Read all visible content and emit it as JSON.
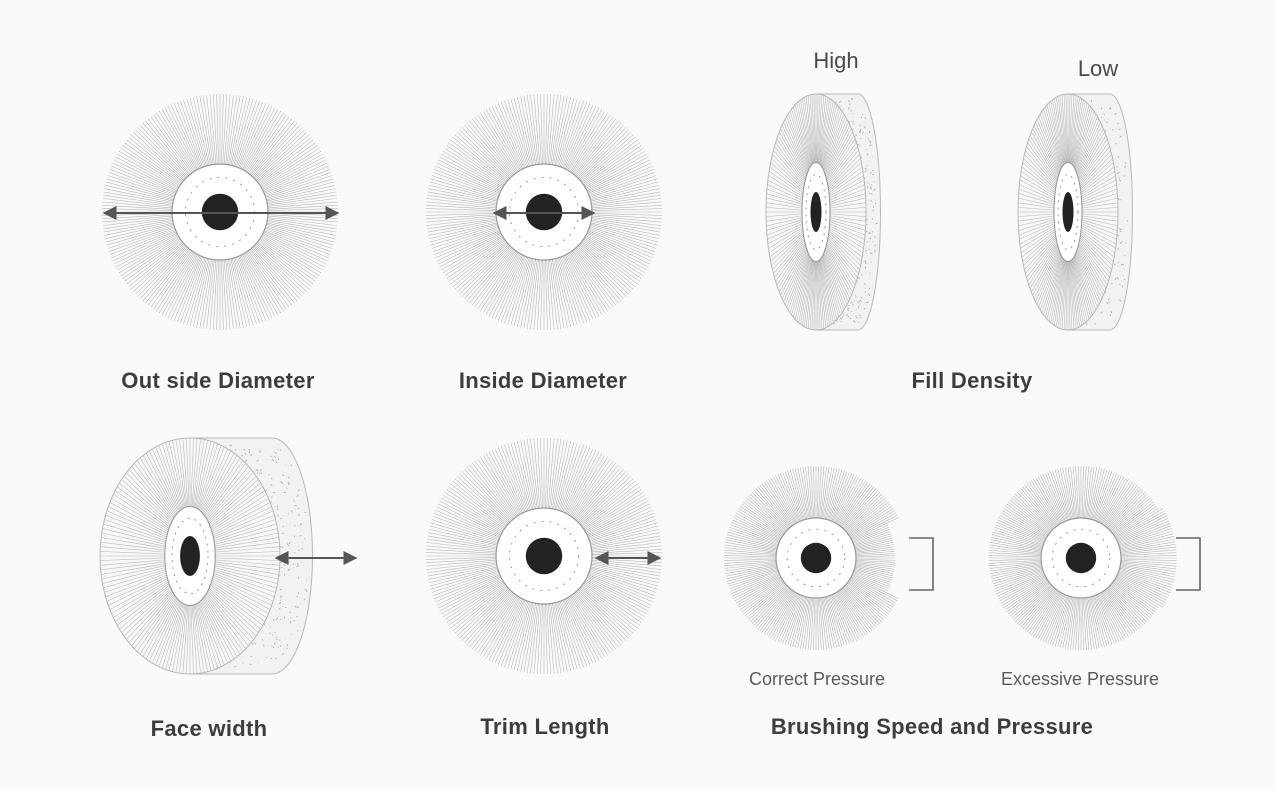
{
  "captions": {
    "outside_diameter": "Out side Diameter",
    "inside_diameter": "Inside Diameter",
    "fill_density": "Fill Density",
    "face_width": "Face width",
    "trim_length": "Trim Length",
    "brushing_speed_pressure": "Brushing Speed and Pressure"
  },
  "sublabels": {
    "high": "High",
    "low": "Low",
    "correct_pressure": "Correct Pressure",
    "excessive_pressure": "Excessive Pressure"
  },
  "colors": {
    "background": "#fafaf9",
    "bristle": "#b8b8b8",
    "hub_ring": "#9a9a9a",
    "hole": "#222222",
    "arrow": "#555555"
  }
}
